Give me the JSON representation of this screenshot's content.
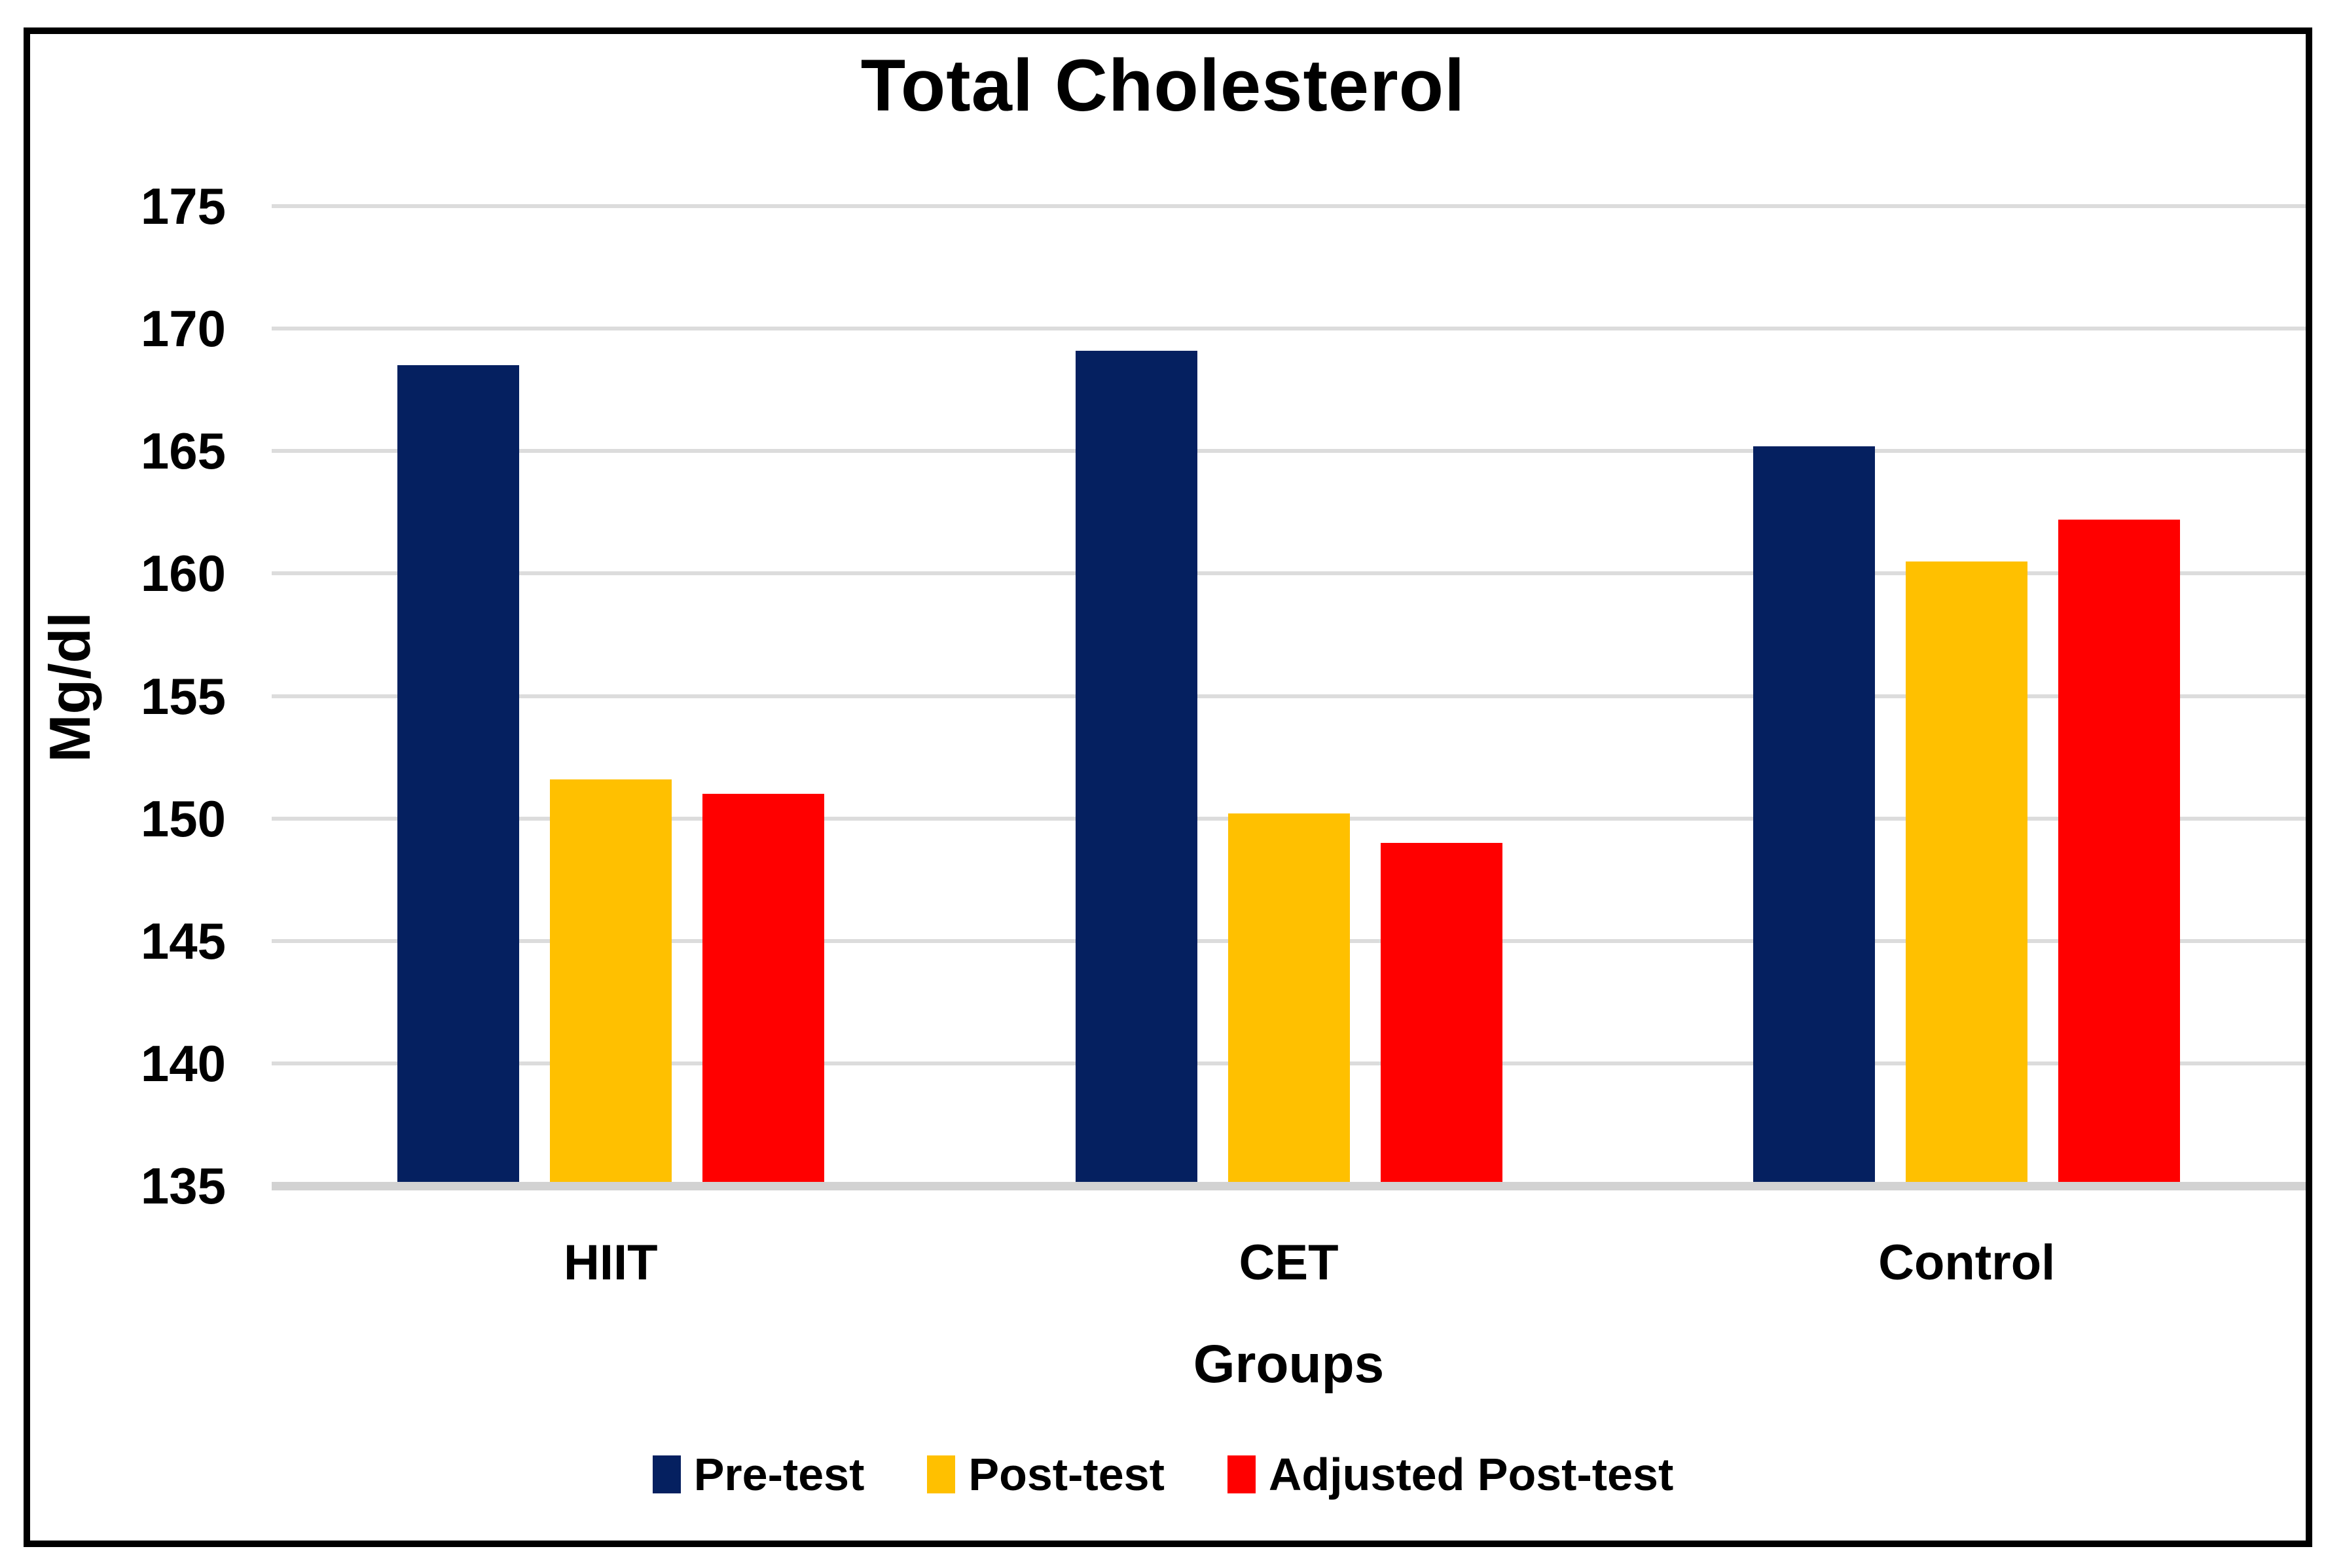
{
  "title": "Total Cholesterol",
  "y_axis": {
    "label": "Mg/dl"
  },
  "x_axis": {
    "label": "Groups"
  },
  "legend": {
    "items": [
      "Pre-test",
      "Post-test",
      "Adjusted Post-test"
    ]
  },
  "colors": {
    "pre_test": "#052060",
    "post_test": "#FFC000",
    "adjusted_post_test": "#FF0000",
    "gridline": "#dcdcdc",
    "baseline": "#d2d2d2",
    "frame": "#000000",
    "text": "#000000",
    "background": "#ffffff"
  },
  "chart_data": {
    "type": "bar",
    "title": "Total Cholesterol",
    "xlabel": "Groups",
    "ylabel": "Mg/dl",
    "ylim": [
      135,
      175
    ],
    "ytick_step": 5,
    "grid": true,
    "legend_position": "bottom",
    "categories": [
      "HIIT",
      "CET",
      "Control"
    ],
    "series": [
      {
        "name": "Pre-test",
        "color": "#052060",
        "values": [
          168.5,
          169.1,
          165.2
        ]
      },
      {
        "name": "Post-test",
        "color": "#FFC000",
        "values": [
          151.6,
          150.2,
          160.5
        ]
      },
      {
        "name": "Adjusted Post-test",
        "color": "#FF0000",
        "values": [
          151.0,
          149.0,
          162.2
        ]
      }
    ]
  }
}
